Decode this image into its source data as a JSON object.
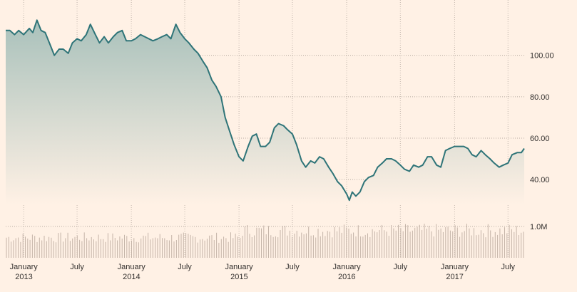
{
  "chart_data": {
    "type": "area",
    "title": "",
    "xlabel": "",
    "ylabel": "",
    "x_range": [
      "2012-11-01",
      "2017-08-25"
    ],
    "ylim": [
      28,
      125
    ],
    "yticks": [
      40,
      60,
      80,
      100
    ],
    "ytick_labels": [
      "40.00",
      "60.00",
      "80.00",
      "100.00"
    ],
    "xticks": [
      {
        "date": "2013-01-01",
        "month": "January",
        "year": "2013"
      },
      {
        "date": "2013-07-01",
        "month": "July",
        "year": ""
      },
      {
        "date": "2014-01-01",
        "month": "January",
        "year": "2014"
      },
      {
        "date": "2014-07-01",
        "month": "July",
        "year": ""
      },
      {
        "date": "2015-01-01",
        "month": "January",
        "year": "2015"
      },
      {
        "date": "2015-07-01",
        "month": "July",
        "year": ""
      },
      {
        "date": "2016-01-01",
        "month": "January",
        "year": "2016"
      },
      {
        "date": "2016-07-01",
        "month": "July",
        "year": ""
      },
      {
        "date": "2017-01-01",
        "month": "January",
        "year": "2017"
      },
      {
        "date": "2017-07-01",
        "month": "July",
        "year": ""
      }
    ],
    "grid": true,
    "colors": {
      "line": "#2e7478",
      "area_top": "#a9c1bb",
      "area_bottom": "#fff1e5",
      "volume": "#c4b4a8"
    },
    "price_series": [
      [
        "2012-11-01",
        112
      ],
      [
        "2012-11-15",
        112
      ],
      [
        "2012-12-01",
        110
      ],
      [
        "2012-12-15",
        112
      ],
      [
        "2013-01-01",
        110
      ],
      [
        "2013-01-20",
        113
      ],
      [
        "2013-02-01",
        111
      ],
      [
        "2013-02-15",
        117
      ],
      [
        "2013-03-01",
        112
      ],
      [
        "2013-03-15",
        111
      ],
      [
        "2013-04-01",
        105
      ],
      [
        "2013-04-15",
        100
      ],
      [
        "2013-05-01",
        103
      ],
      [
        "2013-05-15",
        103
      ],
      [
        "2013-06-01",
        101
      ],
      [
        "2013-06-15",
        106
      ],
      [
        "2013-07-01",
        108
      ],
      [
        "2013-07-15",
        107
      ],
      [
        "2013-08-01",
        110
      ],
      [
        "2013-08-15",
        115
      ],
      [
        "2013-09-01",
        110
      ],
      [
        "2013-09-15",
        106
      ],
      [
        "2013-10-01",
        109
      ],
      [
        "2013-10-15",
        106
      ],
      [
        "2013-11-01",
        109
      ],
      [
        "2013-11-15",
        111
      ],
      [
        "2013-12-01",
        112
      ],
      [
        "2013-12-15",
        107
      ],
      [
        "2014-01-01",
        107
      ],
      [
        "2014-01-15",
        108
      ],
      [
        "2014-02-01",
        110
      ],
      [
        "2014-02-15",
        109
      ],
      [
        "2014-03-01",
        108
      ],
      [
        "2014-03-15",
        107
      ],
      [
        "2014-04-01",
        108
      ],
      [
        "2014-04-15",
        109
      ],
      [
        "2014-05-01",
        110
      ],
      [
        "2014-05-15",
        108
      ],
      [
        "2014-06-01",
        115
      ],
      [
        "2014-06-15",
        111
      ],
      [
        "2014-07-01",
        108
      ],
      [
        "2014-07-15",
        106
      ],
      [
        "2014-08-01",
        103
      ],
      [
        "2014-08-15",
        101
      ],
      [
        "2014-09-01",
        97
      ],
      [
        "2014-09-15",
        94
      ],
      [
        "2014-10-01",
        88
      ],
      [
        "2014-10-15",
        85
      ],
      [
        "2014-11-01",
        80
      ],
      [
        "2014-11-15",
        70
      ],
      [
        "2014-12-01",
        63
      ],
      [
        "2014-12-15",
        57
      ],
      [
        "2015-01-01",
        51
      ],
      [
        "2015-01-15",
        49
      ],
      [
        "2015-02-01",
        56
      ],
      [
        "2015-02-15",
        61
      ],
      [
        "2015-03-01",
        62
      ],
      [
        "2015-03-15",
        56
      ],
      [
        "2015-04-01",
        56
      ],
      [
        "2015-04-15",
        58
      ],
      [
        "2015-05-01",
        65
      ],
      [
        "2015-05-15",
        67
      ],
      [
        "2015-06-01",
        66
      ],
      [
        "2015-06-15",
        64
      ],
      [
        "2015-07-01",
        62
      ],
      [
        "2015-07-15",
        57
      ],
      [
        "2015-08-01",
        49
      ],
      [
        "2015-08-15",
        46
      ],
      [
        "2015-09-01",
        49
      ],
      [
        "2015-09-15",
        48
      ],
      [
        "2015-10-01",
        51
      ],
      [
        "2015-10-15",
        50
      ],
      [
        "2015-11-01",
        46
      ],
      [
        "2015-11-15",
        43
      ],
      [
        "2015-12-01",
        39
      ],
      [
        "2015-12-15",
        37
      ],
      [
        "2016-01-01",
        33
      ],
      [
        "2016-01-10",
        30
      ],
      [
        "2016-01-20",
        34
      ],
      [
        "2016-02-01",
        32
      ],
      [
        "2016-02-15",
        34
      ],
      [
        "2016-03-01",
        39
      ],
      [
        "2016-03-15",
        41
      ],
      [
        "2016-04-01",
        42
      ],
      [
        "2016-04-15",
        46
      ],
      [
        "2016-05-01",
        48
      ],
      [
        "2016-05-15",
        50
      ],
      [
        "2016-06-01",
        50
      ],
      [
        "2016-06-15",
        49
      ],
      [
        "2016-07-01",
        47
      ],
      [
        "2016-07-15",
        45
      ],
      [
        "2016-08-01",
        44
      ],
      [
        "2016-08-15",
        47
      ],
      [
        "2016-09-01",
        46
      ],
      [
        "2016-09-15",
        47
      ],
      [
        "2016-10-01",
        51
      ],
      [
        "2016-10-15",
        51
      ],
      [
        "2016-11-01",
        47
      ],
      [
        "2016-11-15",
        46
      ],
      [
        "2016-12-01",
        54
      ],
      [
        "2016-12-15",
        55
      ],
      [
        "2017-01-01",
        56
      ],
      [
        "2017-01-15",
        56
      ],
      [
        "2017-02-01",
        56
      ],
      [
        "2017-02-15",
        55
      ],
      [
        "2017-03-01",
        52
      ],
      [
        "2017-03-15",
        51
      ],
      [
        "2017-04-01",
        54
      ],
      [
        "2017-04-15",
        52
      ],
      [
        "2017-05-01",
        50
      ],
      [
        "2017-05-15",
        48
      ],
      [
        "2017-06-01",
        46
      ],
      [
        "2017-06-15",
        47
      ],
      [
        "2017-07-01",
        48
      ],
      [
        "2017-07-15",
        52
      ],
      [
        "2017-08-01",
        53
      ],
      [
        "2017-08-15",
        53
      ],
      [
        "2017-08-25",
        55
      ]
    ],
    "volume": {
      "tick_label": "1.0M",
      "tick_value": 1000000,
      "max": 1450000,
      "bar_count": 220,
      "base_level": 680000,
      "amplitude": 420000,
      "series_note": ""
    }
  }
}
